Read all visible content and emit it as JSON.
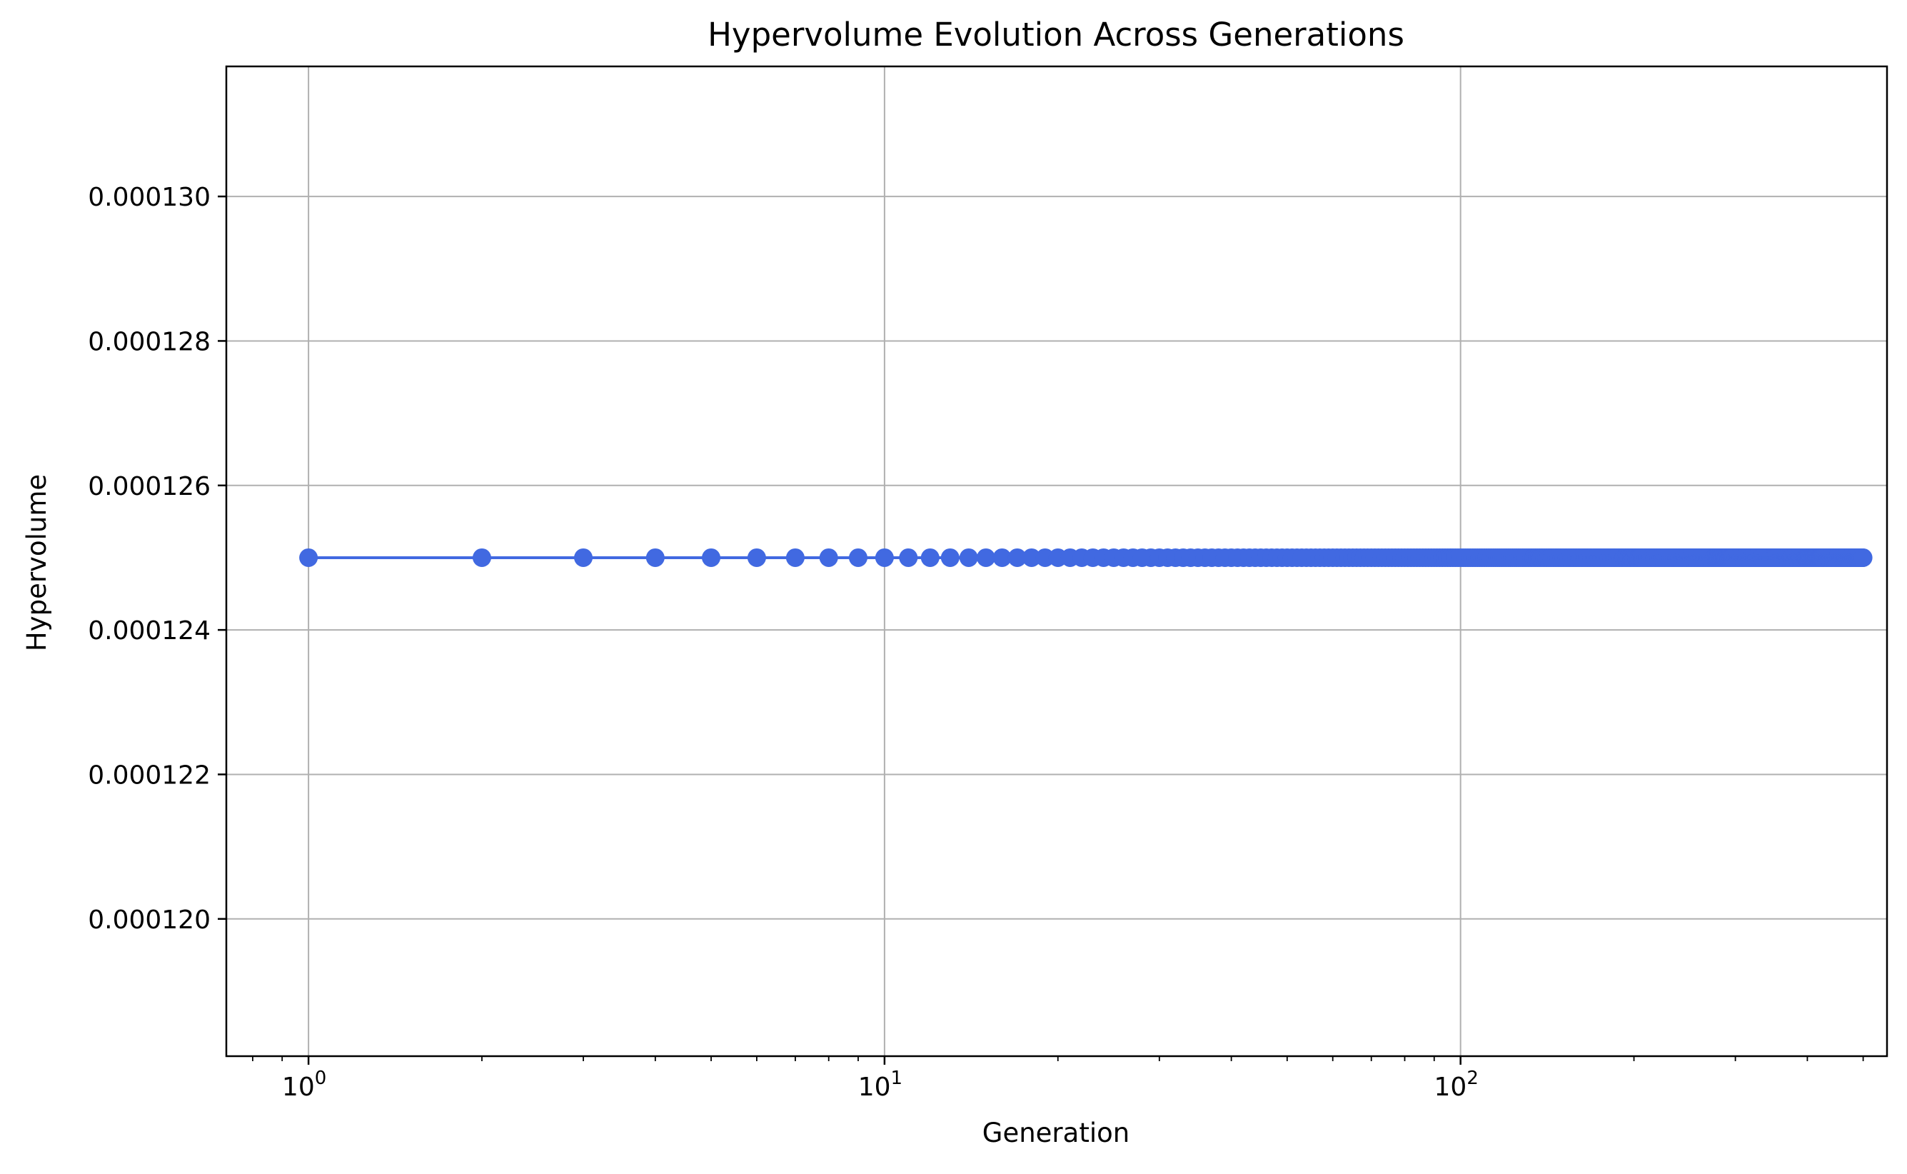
{
  "chart_data": {
    "type": "line",
    "title": "Hypervolume Evolution Across Generations",
    "xlabel": "Generation",
    "ylabel": "Hypervolume",
    "xscale": "log",
    "xlim": [
      0.72,
      550
    ],
    "ylim": [
      0.0001181,
      0.0001318
    ],
    "x_ticks": [
      {
        "value": 1,
        "base": "10",
        "exp": "0"
      },
      {
        "value": 10,
        "base": "10",
        "exp": "1"
      },
      {
        "value": 100,
        "base": "10",
        "exp": "2"
      }
    ],
    "y_ticks": [
      {
        "value": 0.00012,
        "label": "0.000120"
      },
      {
        "value": 0.000122,
        "label": "0.000122"
      },
      {
        "value": 0.000124,
        "label": "0.000124"
      },
      {
        "value": 0.000126,
        "label": "0.000126"
      },
      {
        "value": 0.000128,
        "label": "0.000128"
      },
      {
        "value": 0.00013,
        "label": "0.000130"
      }
    ],
    "grid": true,
    "legend": "none",
    "series": [
      {
        "color": "#4169E1",
        "marker": "circle",
        "x_range": [
          1,
          500
        ],
        "x_step": 1,
        "constant_y": 0.000125
      }
    ]
  }
}
